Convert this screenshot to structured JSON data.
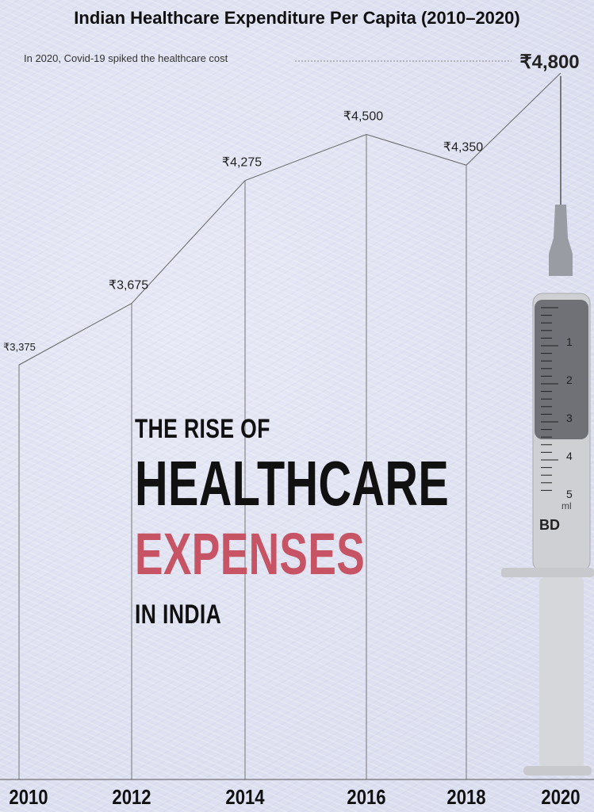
{
  "header": {
    "title": "Indian Healthcare Expenditure Per Capita (2010–2020)",
    "annotation": "In 2020, Covid-19 spiked the healthcare cost"
  },
  "hero": {
    "line1": "THE RISE OF",
    "line2": "HEALTHCARE",
    "line3": "EXPENSES",
    "line4": "IN INDIA"
  },
  "syringe": {
    "brand": "BD",
    "unit": "ml",
    "scale": [
      "1",
      "2",
      "3",
      "4",
      "5"
    ]
  },
  "colors": {
    "accent": "#c65465",
    "text": "#111111",
    "background": "#dfe2f1"
  },
  "chart_data": {
    "type": "line",
    "x": [
      "2010",
      "2012",
      "2014",
      "2016",
      "2018",
      "2020"
    ],
    "values": [
      3375,
      3675,
      4275,
      4500,
      4350,
      4800
    ],
    "labels": [
      "₹3,375",
      "₹3,675",
      "₹4,275",
      "₹4,500",
      "₹4,350",
      "₹4,800"
    ],
    "highlight_index": 5,
    "ylim": [
      2400,
      4800
    ],
    "grid": false
  }
}
